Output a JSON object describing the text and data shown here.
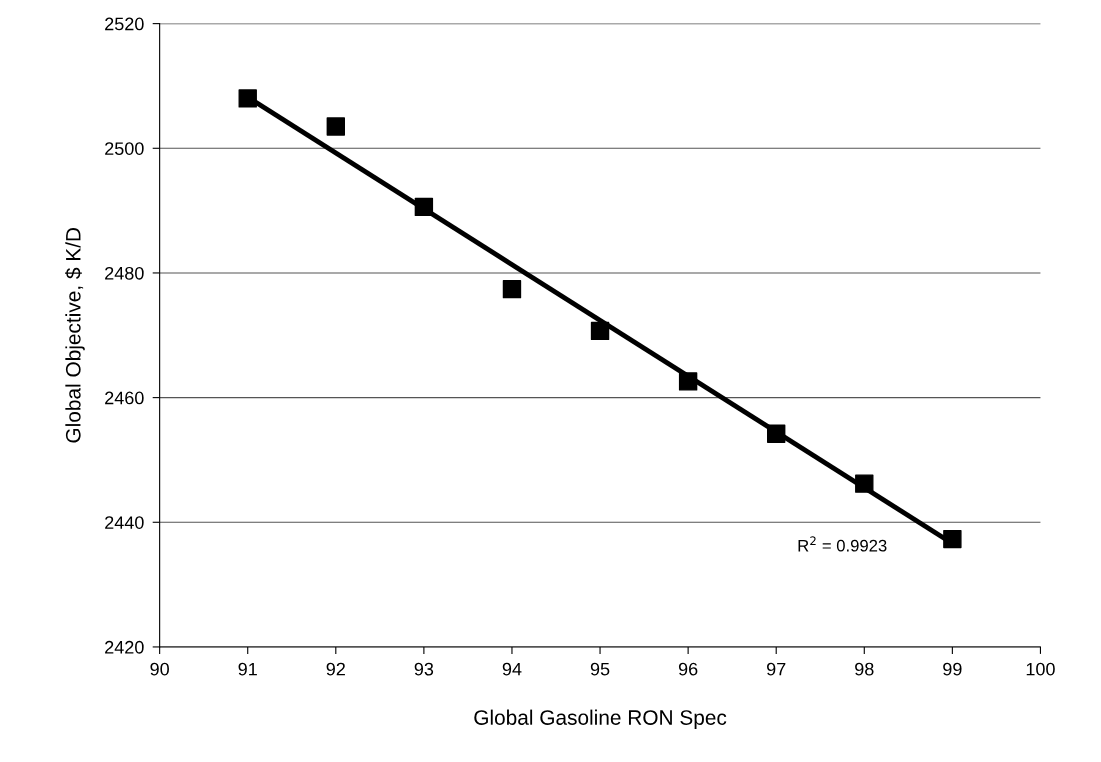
{
  "chart_data": {
    "type": "scatter",
    "xlabel": "Global Gasoline RON Spec",
    "ylabel": "Global Objective, $ K/D",
    "x": [
      91,
      92,
      93,
      94,
      95,
      96,
      97,
      98,
      99
    ],
    "series": [
      {
        "color": "#000000",
        "marker": "square",
        "values": [
          2508,
          2503.5,
          2490.6,
          2477.4,
          2470.7,
          2462.6,
          2454.2,
          2446.2,
          2437.3
        ]
      },
      {
        "type": "line",
        "color": "#000000",
        "marker": "none",
        "line_style": "solid",
        "x": [
          91,
          99
        ],
        "values": [
          2508.2,
          2436.6
        ]
      }
    ],
    "annotations": [
      "R$^{2}$ = 0.9923"
    ],
    "xlim": [
      90,
      100
    ],
    "xticks": [
      90,
      91,
      92,
      93,
      94,
      95,
      96,
      97,
      98,
      99,
      100
    ],
    "ylim": [
      2420,
      2520
    ],
    "yticks": [
      2420,
      2440,
      2460,
      2480,
      2500,
      2520
    ],
    "grid": "y",
    "legend": false
  }
}
